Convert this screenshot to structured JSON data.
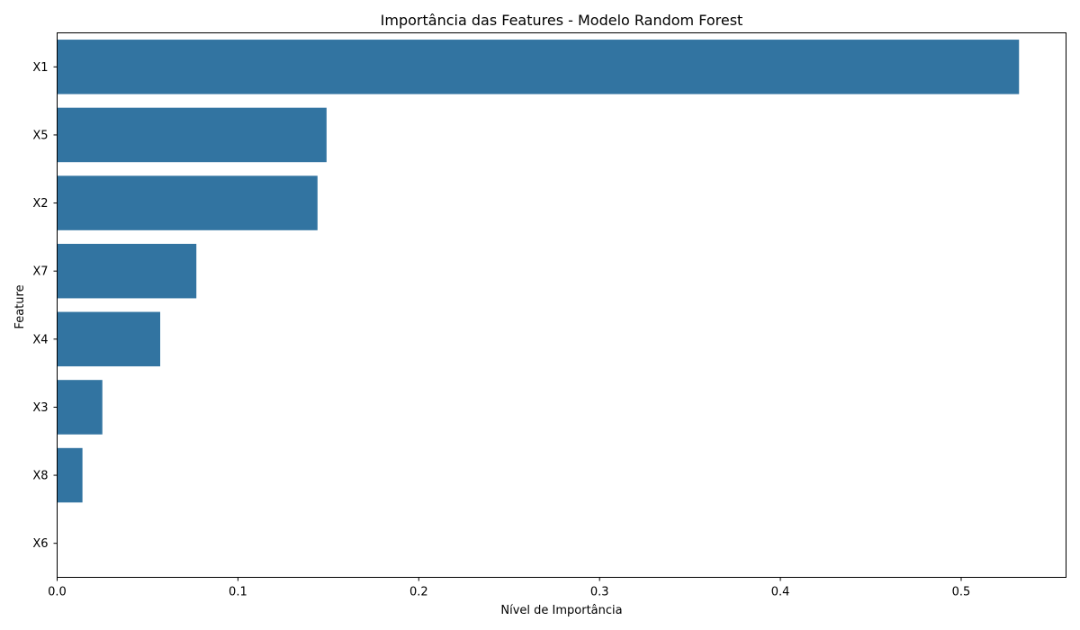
{
  "chart_data": {
    "type": "bar",
    "orientation": "horizontal",
    "title": "Importância das Features - Modelo Random Forest",
    "xlabel": "Nível de Importância",
    "ylabel": "Feature",
    "categories": [
      "X1",
      "X5",
      "X2",
      "X7",
      "X4",
      "X3",
      "X8",
      "X6"
    ],
    "values": [
      0.532,
      0.149,
      0.144,
      0.077,
      0.057,
      0.025,
      0.014,
      0.0
    ],
    "xlim": [
      0,
      0.558
    ],
    "xticks": [
      0.0,
      0.1,
      0.2,
      0.3,
      0.4,
      0.5
    ],
    "xtick_labels": [
      "0.0",
      "0.1",
      "0.2",
      "0.3",
      "0.4",
      "0.5"
    ],
    "grid": false,
    "bar_color": "#3274a1"
  }
}
